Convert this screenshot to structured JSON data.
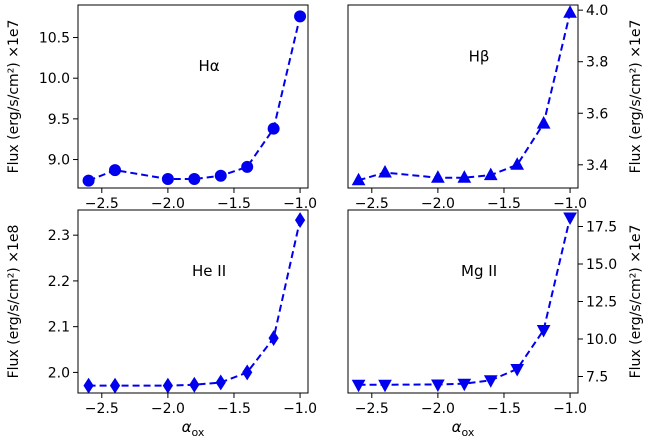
{
  "chart_data": [
    {
      "type": "line",
      "panel_label": "Hα",
      "ylabel": "Flux (erg/s/cm²) ×1e7",
      "ylabel_side": "left",
      "xlabel": "",
      "marker": "circle",
      "color": "#0000ee",
      "x": [
        -2.6,
        -2.4,
        -2.0,
        -1.8,
        -1.6,
        -1.4,
        -1.2,
        -1.0
      ],
      "y": [
        8.74,
        8.87,
        8.76,
        8.76,
        8.8,
        8.91,
        9.38,
        10.76
      ],
      "xlim": [
        -2.68,
        -0.94
      ],
      "ylim": [
        8.65,
        10.9
      ],
      "xticks": [
        -2.5,
        -2.0,
        -1.5,
        -1.0
      ],
      "xtick_labels": [
        "−2.5",
        "−2.0",
        "−1.5",
        "−1.0"
      ],
      "yticks": [
        9.0,
        9.5,
        10.0,
        10.5
      ],
      "ytick_labels": [
        "9.0",
        "9.5",
        "10.0",
        "10.5"
      ]
    },
    {
      "type": "line",
      "panel_label": "Hβ",
      "ylabel": "Flux (erg/s/cm²) ×1e7",
      "ylabel_side": "right",
      "xlabel": "",
      "marker": "triangle-up",
      "color": "#0000ee",
      "x": [
        -2.6,
        -2.4,
        -2.0,
        -1.8,
        -1.6,
        -1.4,
        -1.2,
        -1.0
      ],
      "y": [
        3.34,
        3.37,
        3.35,
        3.35,
        3.36,
        3.4,
        3.56,
        3.99
      ],
      "xlim": [
        -2.68,
        -0.94
      ],
      "ylim": [
        3.31,
        4.02
      ],
      "xticks": [
        -2.5,
        -2.0,
        -1.5,
        -1.0
      ],
      "xtick_labels": [
        "−2.5",
        "−2.0",
        "−1.5",
        "−1.0"
      ],
      "yticks": [
        3.4,
        3.6,
        3.8,
        4.0
      ],
      "ytick_labels": [
        "3.4",
        "3.6",
        "3.8",
        "4.0"
      ]
    },
    {
      "type": "line",
      "panel_label": "He II",
      "ylabel": "Flux (erg/s/cm²) ×1e8",
      "ylabel_side": "left",
      "xlabel": "α",
      "xlabel_sub": "ox",
      "marker": "diamond",
      "color": "#0000ee",
      "x": [
        -2.6,
        -2.4,
        -2.0,
        -1.8,
        -1.6,
        -1.4,
        -1.2,
        -1.0
      ],
      "y": [
        1.971,
        1.971,
        1.971,
        1.973,
        1.978,
        2.0,
        2.075,
        2.333
      ],
      "xlim": [
        -2.68,
        -0.94
      ],
      "ylim": [
        1.955,
        2.355
      ],
      "xticks": [
        -2.5,
        -2.0,
        -1.5,
        -1.0
      ],
      "xtick_labels": [
        "−2.5",
        "−2.0",
        "−1.5",
        "−1.0"
      ],
      "yticks": [
        2.0,
        2.1,
        2.2,
        2.3
      ],
      "ytick_labels": [
        "2.0",
        "2.1",
        "2.2",
        "2.3"
      ]
    },
    {
      "type": "line",
      "panel_label": "Mg II",
      "ylabel": "Flux (erg/s/cm²) ×1e7",
      "ylabel_side": "right",
      "xlabel": "α",
      "xlabel_sub": "ox",
      "marker": "triangle-down",
      "color": "#0000ee",
      "x": [
        -2.6,
        -2.4,
        -2.0,
        -1.8,
        -1.6,
        -1.4,
        -1.2,
        -1.0
      ],
      "y": [
        6.95,
        6.95,
        6.97,
        7.02,
        7.25,
        8.0,
        10.6,
        18.1
      ],
      "xlim": [
        -2.68,
        -0.94
      ],
      "ylim": [
        6.4,
        18.6
      ],
      "xticks": [
        -2.5,
        -2.0,
        -1.5,
        -1.0
      ],
      "xtick_labels": [
        "−2.5",
        "−2.0",
        "−1.5",
        "−1.0"
      ],
      "yticks": [
        7.5,
        10.0,
        12.5,
        15.0,
        17.5
      ],
      "ytick_labels": [
        "7.5",
        "10.0",
        "12.5",
        "15.0",
        "17.5"
      ]
    }
  ]
}
